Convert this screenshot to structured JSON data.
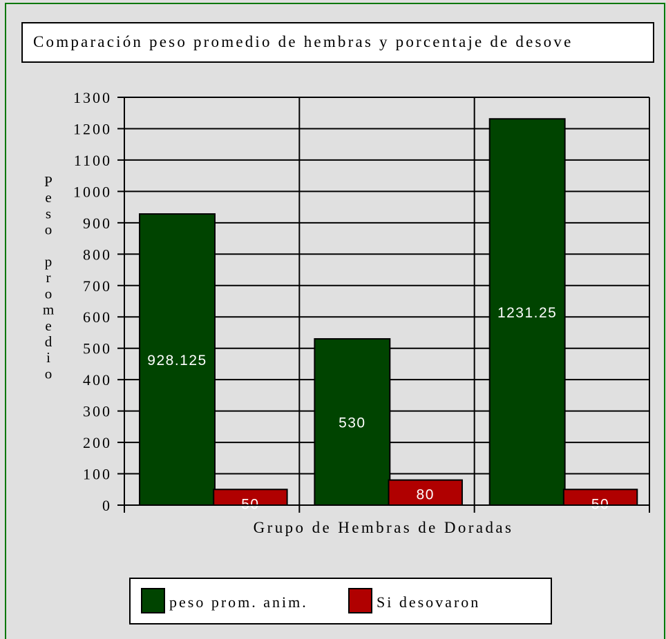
{
  "chart_data": {
    "type": "bar",
    "title": "Comparación peso promedio de hembras y porcentaje de desove",
    "x_label": "Grupo de Hembras de Doradas",
    "y_label": "Peso promedio",
    "categories": [
      null,
      null,
      null
    ],
    "series": [
      {
        "name": "peso prom. anim.",
        "color": "#004400",
        "values": [
          928.125,
          530,
          1231.25
        ]
      },
      {
        "name": "Si desovaron",
        "color": "#b00000",
        "values": [
          50,
          80,
          50
        ]
      }
    ],
    "ylim": [
      0,
      1300
    ],
    "yticks": [
      0,
      100,
      200,
      300,
      400,
      500,
      600,
      700,
      800,
      900,
      1000,
      1100,
      1200,
      1300
    ],
    "grid": true,
    "legend": "bottom"
  }
}
